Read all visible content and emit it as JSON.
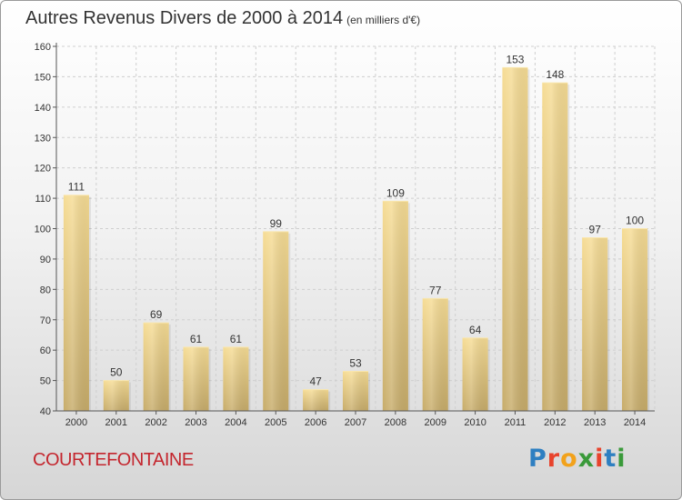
{
  "title": "Autres Revenus Divers de 2000 à 2014",
  "subtitle": "(en milliers d'€)",
  "location": "COURTEFONTAINE",
  "brand": {
    "letters": [
      "P",
      "r",
      "o",
      "x",
      "i",
      "t",
      "i"
    ],
    "colors": [
      "#2e7fc1",
      "#e8432c",
      "#f2a21b",
      "#3a9a3a",
      "#e8432c",
      "#2e7fc1",
      "#3a9a3a"
    ]
  },
  "chart_data": {
    "type": "bar",
    "title": "Autres Revenus Divers de 2000 à 2014",
    "xlabel": "",
    "ylabel": "",
    "categories": [
      "2000",
      "2001",
      "2002",
      "2003",
      "2004",
      "2005",
      "2006",
      "2007",
      "2008",
      "2009",
      "2010",
      "2011",
      "2012",
      "2013",
      "2014"
    ],
    "values": [
      111,
      50,
      69,
      61,
      61,
      99,
      47,
      53,
      109,
      77,
      64,
      153,
      148,
      97,
      100
    ],
    "ylim": [
      40,
      160
    ],
    "yticks": [
      40,
      50,
      60,
      70,
      80,
      90,
      100,
      110,
      120,
      130,
      140,
      150,
      160
    ],
    "grid": true,
    "bar_color_light": "#f6dc94",
    "bar_color_dark": "#c7ac6a"
  }
}
